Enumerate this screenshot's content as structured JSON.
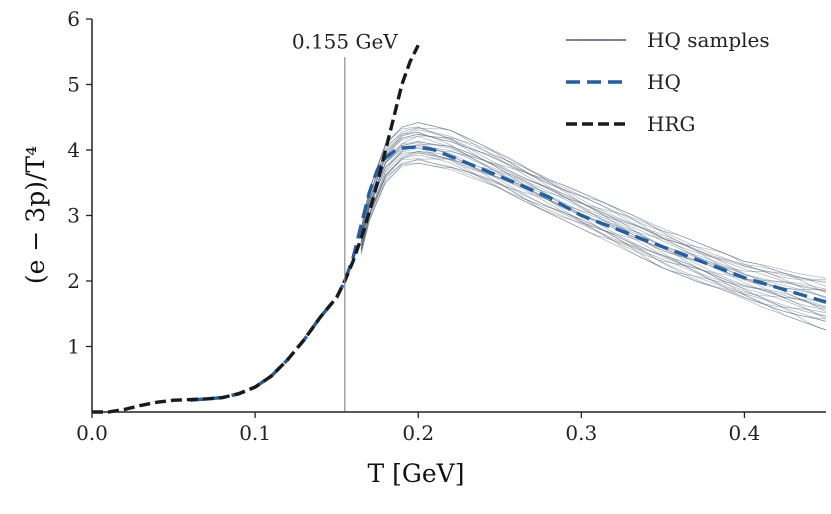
{
  "chart_data": {
    "type": "line",
    "xlabel": "T [GeV]",
    "ylabel": "(e − 3p)/T⁴",
    "xlim": [
      0.0,
      0.45
    ],
    "ylim": [
      0,
      6
    ],
    "xticks": [
      0.0,
      0.1,
      0.2,
      0.3,
      0.4
    ],
    "xtick_labels": [
      "0.0",
      "0.1",
      "0.2",
      "0.3",
      "0.4"
    ],
    "yticks": [
      1,
      2,
      3,
      4,
      5,
      6
    ],
    "ytick_labels": [
      "1",
      "2",
      "3",
      "4",
      "5",
      "6"
    ],
    "grid": false,
    "legend": "top-right",
    "annotation": {
      "text": "0.155 GeV",
      "x": 0.155
    },
    "series": [
      {
        "name": "HQ samples",
        "style": "thin-solid",
        "color": "#4a5a72",
        "count": 30,
        "x": [
          0.165,
          0.17,
          0.18,
          0.19,
          0.2,
          0.22,
          0.25,
          0.3,
          0.35,
          0.4,
          0.45
        ],
        "band_low": [
          2.4,
          2.9,
          3.5,
          3.75,
          3.8,
          3.7,
          3.4,
          2.8,
          2.2,
          1.7,
          1.25
        ],
        "band_high": [
          2.8,
          3.4,
          4.1,
          4.35,
          4.42,
          4.3,
          3.95,
          3.35,
          2.8,
          2.3,
          2.05
        ]
      },
      {
        "name": "HQ",
        "style": "dashed",
        "color": "#1f5fa6",
        "x": [
          0.06,
          0.07,
          0.08,
          0.09,
          0.1,
          0.11,
          0.12,
          0.13,
          0.14,
          0.15,
          0.155,
          0.16,
          0.165,
          0.17,
          0.175,
          0.18,
          0.185,
          0.19,
          0.2,
          0.21,
          0.22,
          0.25,
          0.28,
          0.3,
          0.35,
          0.4,
          0.45
        ],
        "y": [
          0.18,
          0.2,
          0.22,
          0.28,
          0.38,
          0.55,
          0.8,
          1.1,
          1.45,
          1.75,
          2.0,
          2.35,
          2.85,
          3.35,
          3.7,
          3.88,
          3.98,
          4.03,
          4.05,
          4.0,
          3.9,
          3.6,
          3.28,
          3.0,
          2.52,
          2.05,
          1.68
        ]
      },
      {
        "name": "HRG",
        "style": "dashed",
        "color": "#1a1a1a",
        "x": [
          0.0,
          0.01,
          0.02,
          0.03,
          0.04,
          0.05,
          0.06,
          0.07,
          0.08,
          0.09,
          0.1,
          0.11,
          0.12,
          0.13,
          0.14,
          0.15,
          0.155,
          0.16,
          0.165,
          0.17,
          0.175,
          0.18,
          0.185,
          0.19,
          0.195,
          0.2
        ],
        "y": [
          0.0,
          0.0,
          0.04,
          0.1,
          0.15,
          0.18,
          0.19,
          0.2,
          0.22,
          0.28,
          0.38,
          0.55,
          0.8,
          1.1,
          1.45,
          1.75,
          2.0,
          2.3,
          2.65,
          3.05,
          3.5,
          4.0,
          4.5,
          5.0,
          5.35,
          5.6
        ]
      }
    ]
  }
}
